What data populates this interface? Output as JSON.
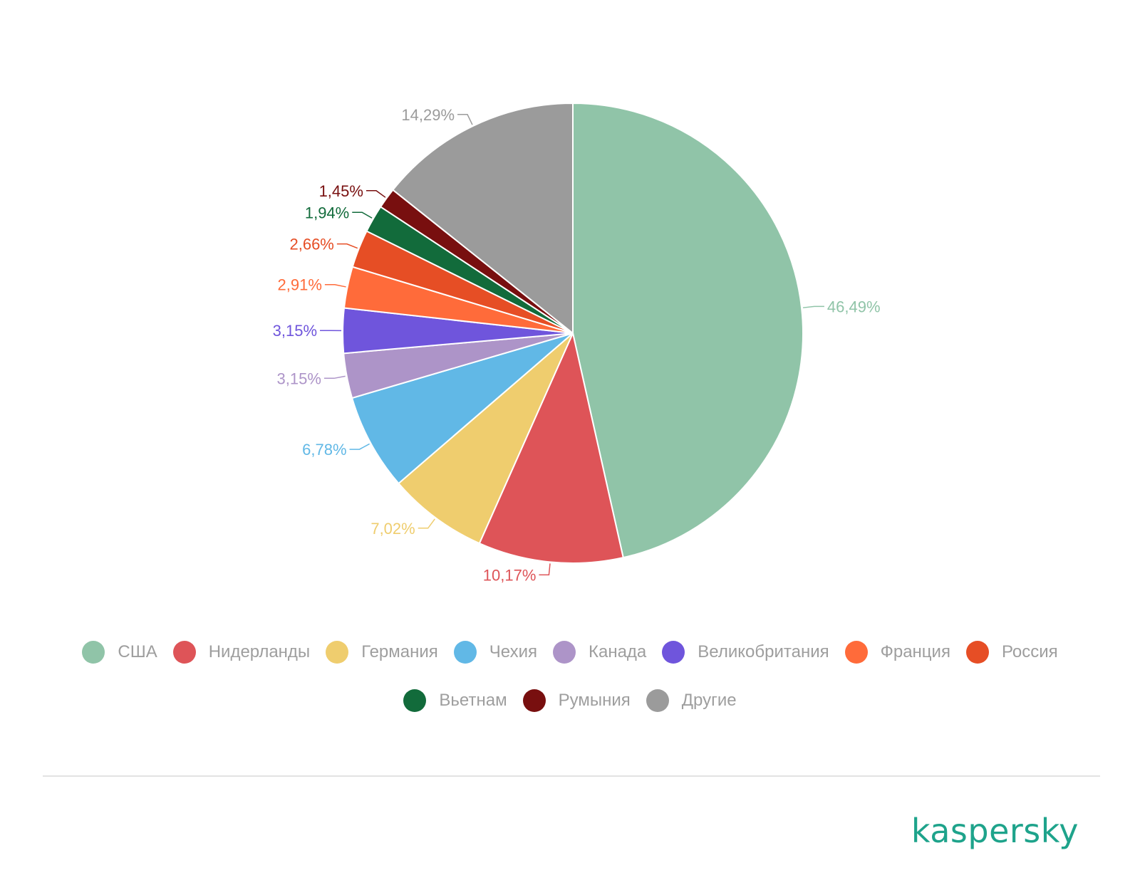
{
  "chart_data": {
    "type": "pie",
    "title": "",
    "legend_position": "bottom",
    "slices": [
      {
        "label": "США",
        "value": 46.49,
        "display": "46,49%",
        "color": "#90c4a8"
      },
      {
        "label": "Нидерланды",
        "value": 10.17,
        "display": "10,17%",
        "color": "#de5458"
      },
      {
        "label": "Германия",
        "value": 7.02,
        "display": "7,02%",
        "color": "#efcd6e"
      },
      {
        "label": "Чехия",
        "value": 6.78,
        "display": "6,78%",
        "color": "#61b8e6"
      },
      {
        "label": "Канада",
        "value": 3.15,
        "display": "3,15%",
        "color": "#ad94c8"
      },
      {
        "label": "Великобритания",
        "value": 3.15,
        "display": "3,15%",
        "color": "#6f55dc"
      },
      {
        "label": "Франция",
        "value": 2.91,
        "display": "2,91%",
        "color": "#ff6b3a"
      },
      {
        "label": "Россия",
        "value": 2.66,
        "display": "2,66%",
        "color": "#e64e25"
      },
      {
        "label": "Вьетнам",
        "value": 1.94,
        "display": "1,94%",
        "color": "#126b3b"
      },
      {
        "label": "Румыния",
        "value": 1.45,
        "display": "1,45%",
        "color": "#780f0f"
      },
      {
        "label": "Другие",
        "value": 14.29,
        "display": "14,29%",
        "color": "#9b9b9b"
      }
    ]
  },
  "brand": {
    "logo_text": "kaspersky",
    "color": "#1ea38b"
  }
}
